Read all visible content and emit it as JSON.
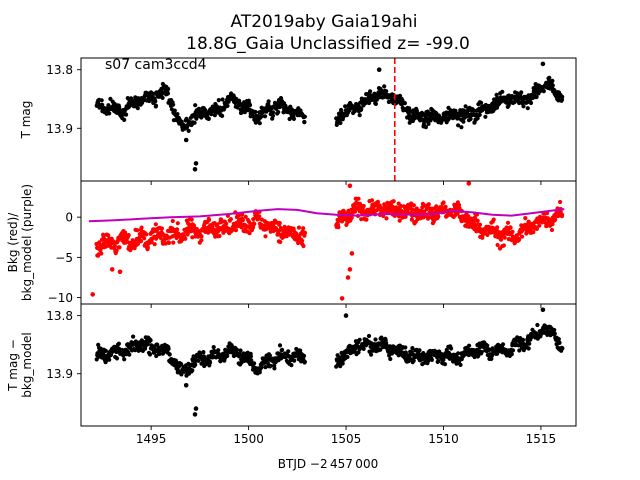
{
  "figure": {
    "title_line1": "AT2019aby  Gaia19ahi",
    "title_line2": "18.8G_Gaia Unclassified z= -99.0",
    "annotation": "s07 cam3ccd4",
    "xlabel": "BTJD −2 457 000"
  },
  "chart_data": [
    {
      "type": "scatter",
      "ylabel": "T mag",
      "y_inverted": true,
      "xlim": [
        1491.4,
        1516.8
      ],
      "ylim": [
        13.78,
        13.99
      ],
      "x_ticks": [
        1495,
        1500,
        1505,
        1510,
        1515
      ],
      "y_ticks": [
        13.8,
        13.9
      ],
      "y_tick_labels": [
        "13.8",
        "13.9"
      ],
      "vline": {
        "x": 1507.5,
        "color": "#ff0000",
        "style": "dashed"
      },
      "series": [
        {
          "color": "#000000",
          "segments": [
            {
              "x_range": [
                1492.2,
                1502.9
              ],
              "anchors": [
                [
                  1492.2,
                  13.86
                ],
                [
                  1493.5,
                  13.87
                ],
                [
                  1494.5,
                  13.85
                ],
                [
                  1495.8,
                  13.84
                ],
                [
                  1496.6,
                  13.9
                ],
                [
                  1497.2,
                  13.88
                ],
                [
                  1498.3,
                  13.87
                ],
                [
                  1499.2,
                  13.85
                ],
                [
                  1500.5,
                  13.88
                ],
                [
                  1501.5,
                  13.86
                ],
                [
                  1502.9,
                  13.88
                ]
              ],
              "scatter": 0.012,
              "dips": [
                [
                  1497.3,
                  13.96
                ],
                [
                  1497.25,
                  13.97
                ],
                [
                  1496.8,
                  13.92
                ]
              ]
            },
            {
              "x_range": [
                1504.5,
                1516.1
              ],
              "anchors": [
                [
                  1504.5,
                  13.88
                ],
                [
                  1505.6,
                  13.86
                ],
                [
                  1506.8,
                  13.84
                ],
                [
                  1507.5,
                  13.85
                ],
                [
                  1508.5,
                  13.88
                ],
                [
                  1509.7,
                  13.88
                ],
                [
                  1510.8,
                  13.88
                ],
                [
                  1512.0,
                  13.87
                ],
                [
                  1513.2,
                  13.85
                ],
                [
                  1514.5,
                  13.85
                ],
                [
                  1515.2,
                  13.82
                ],
                [
                  1516.1,
                  13.85
                ]
              ],
              "scatter": 0.012,
              "dips": [
                [
                  1506.7,
                  13.8
                ],
                [
                  1515.1,
                  13.79
                ]
              ]
            }
          ]
        }
      ]
    },
    {
      "type": "scatter",
      "ylabel": "Bkg (red)/\nbkg_model (purple)",
      "xlim": [
        1491.4,
        1516.8
      ],
      "ylim": [
        -10.8,
        4.5
      ],
      "x_ticks": [
        1495,
        1500,
        1505,
        1510,
        1515
      ],
      "y_ticks": [
        0,
        -5,
        -10
      ],
      "y_tick_labels": [
        "0",
        "−5",
        "−10"
      ],
      "series": [
        {
          "name": "Bkg (red)",
          "color": "#ff0000",
          "segments": [
            {
              "x_range": [
                1492.2,
                1502.9
              ],
              "anchors": [
                [
                  1492.2,
                  -3.5
                ],
                [
                  1493.5,
                  -3.0
                ],
                [
                  1495.0,
                  -2.5
                ],
                [
                  1497.0,
                  -1.8
                ],
                [
                  1499.0,
                  -1.0
                ],
                [
                  1500.5,
                  -0.5
                ],
                [
                  1501.5,
                  -1.5
                ],
                [
                  1502.9,
                  -2.8
                ]
              ],
              "scatter": 1.1,
              "dips": [
                [
                  1492.0,
                  -9.6
                ],
                [
                  1493.0,
                  -6.5
                ],
                [
                  1493.4,
                  -6.8
                ]
              ]
            },
            {
              "x_range": [
                1504.5,
                1516.1
              ],
              "anchors": [
                [
                  1504.5,
                  -1.0
                ],
                [
                  1505.5,
                  1.0
                ],
                [
                  1507.0,
                  1.0
                ],
                [
                  1509.0,
                  0.5
                ],
                [
                  1510.5,
                  0.8
                ],
                [
                  1512.0,
                  -1.5
                ],
                [
                  1513.5,
                  -2.5
                ],
                [
                  1515.0,
                  -0.5
                ],
                [
                  1516.1,
                  0.5
                ]
              ],
              "scatter": 1.1,
              "dips": [
                [
                  1504.8,
                  -10.1
                ],
                [
                  1505.1,
                  -7.5
                ],
                [
                  1505.2,
                  -6.5
                ],
                [
                  1505.3,
                  -4.5
                ],
                [
                  1505.2,
                  3.9
                ],
                [
                  1511.3,
                  4.2
                ]
              ]
            }
          ]
        },
        {
          "name": "bkg_model (purple)",
          "color": "#bf00bf",
          "line": true,
          "points": [
            [
              1491.8,
              -0.5
            ],
            [
              1493.0,
              -0.4
            ],
            [
              1494.5,
              -0.2
            ],
            [
              1496.0,
              0.0
            ],
            [
              1497.5,
              0.1
            ],
            [
              1499.0,
              0.4
            ],
            [
              1500.5,
              0.8
            ],
            [
              1501.5,
              1.0
            ],
            [
              1502.5,
              0.9
            ],
            [
              1503.5,
              0.5
            ],
            [
              1504.5,
              0.3
            ],
            [
              1505.5,
              0.2
            ],
            [
              1507.0,
              0.4
            ],
            [
              1508.5,
              0.3
            ],
            [
              1509.5,
              0.4
            ],
            [
              1510.5,
              0.8
            ],
            [
              1511.5,
              0.6
            ],
            [
              1512.5,
              0.3
            ],
            [
              1513.5,
              0.2
            ],
            [
              1514.5,
              0.5
            ],
            [
              1515.5,
              0.8
            ],
            [
              1516.2,
              1.0
            ]
          ]
        }
      ]
    },
    {
      "type": "scatter",
      "ylabel": "T mag −\nbkg_model",
      "y_inverted": true,
      "xlim": [
        1491.4,
        1516.8
      ],
      "ylim": [
        13.78,
        13.99
      ],
      "x_ticks": [
        1495,
        1500,
        1505,
        1510,
        1515
      ],
      "x_tick_labels": [
        "1495",
        "1500",
        "1505",
        "1510",
        "1515"
      ],
      "y_ticks": [
        13.8,
        13.9
      ],
      "y_tick_labels": [
        "13.8",
        "13.9"
      ],
      "series": [
        {
          "color": "#000000",
          "segments": [
            {
              "x_range": [
                1492.2,
                1502.9
              ],
              "anchors": [
                [
                  1492.2,
                  13.87
                ],
                [
                  1493.5,
                  13.86
                ],
                [
                  1494.5,
                  13.85
                ],
                [
                  1495.8,
                  13.86
                ],
                [
                  1496.6,
                  13.9
                ],
                [
                  1497.2,
                  13.88
                ],
                [
                  1498.3,
                  13.87
                ],
                [
                  1499.2,
                  13.86
                ],
                [
                  1500.5,
                  13.89
                ],
                [
                  1501.5,
                  13.87
                ],
                [
                  1502.9,
                  13.87
                ]
              ],
              "scatter": 0.012,
              "dips": [
                [
                  1497.3,
                  13.96
                ],
                [
                  1497.25,
                  13.97
                ],
                [
                  1496.8,
                  13.92
                ]
              ]
            },
            {
              "x_range": [
                1504.5,
                1516.1
              ],
              "anchors": [
                [
                  1504.5,
                  13.88
                ],
                [
                  1505.6,
                  13.85
                ],
                [
                  1506.8,
                  13.85
                ],
                [
                  1507.5,
                  13.86
                ],
                [
                  1508.5,
                  13.87
                ],
                [
                  1509.7,
                  13.87
                ],
                [
                  1510.8,
                  13.87
                ],
                [
                  1512.0,
                  13.86
                ],
                [
                  1513.2,
                  13.86
                ],
                [
                  1514.5,
                  13.84
                ],
                [
                  1515.2,
                  13.82
                ],
                [
                  1516.1,
                  13.85
                ]
              ],
              "scatter": 0.012,
              "dips": [
                [
                  1505.0,
                  13.8
                ],
                [
                  1515.1,
                  13.79
                ]
              ]
            }
          ]
        }
      ]
    }
  ]
}
